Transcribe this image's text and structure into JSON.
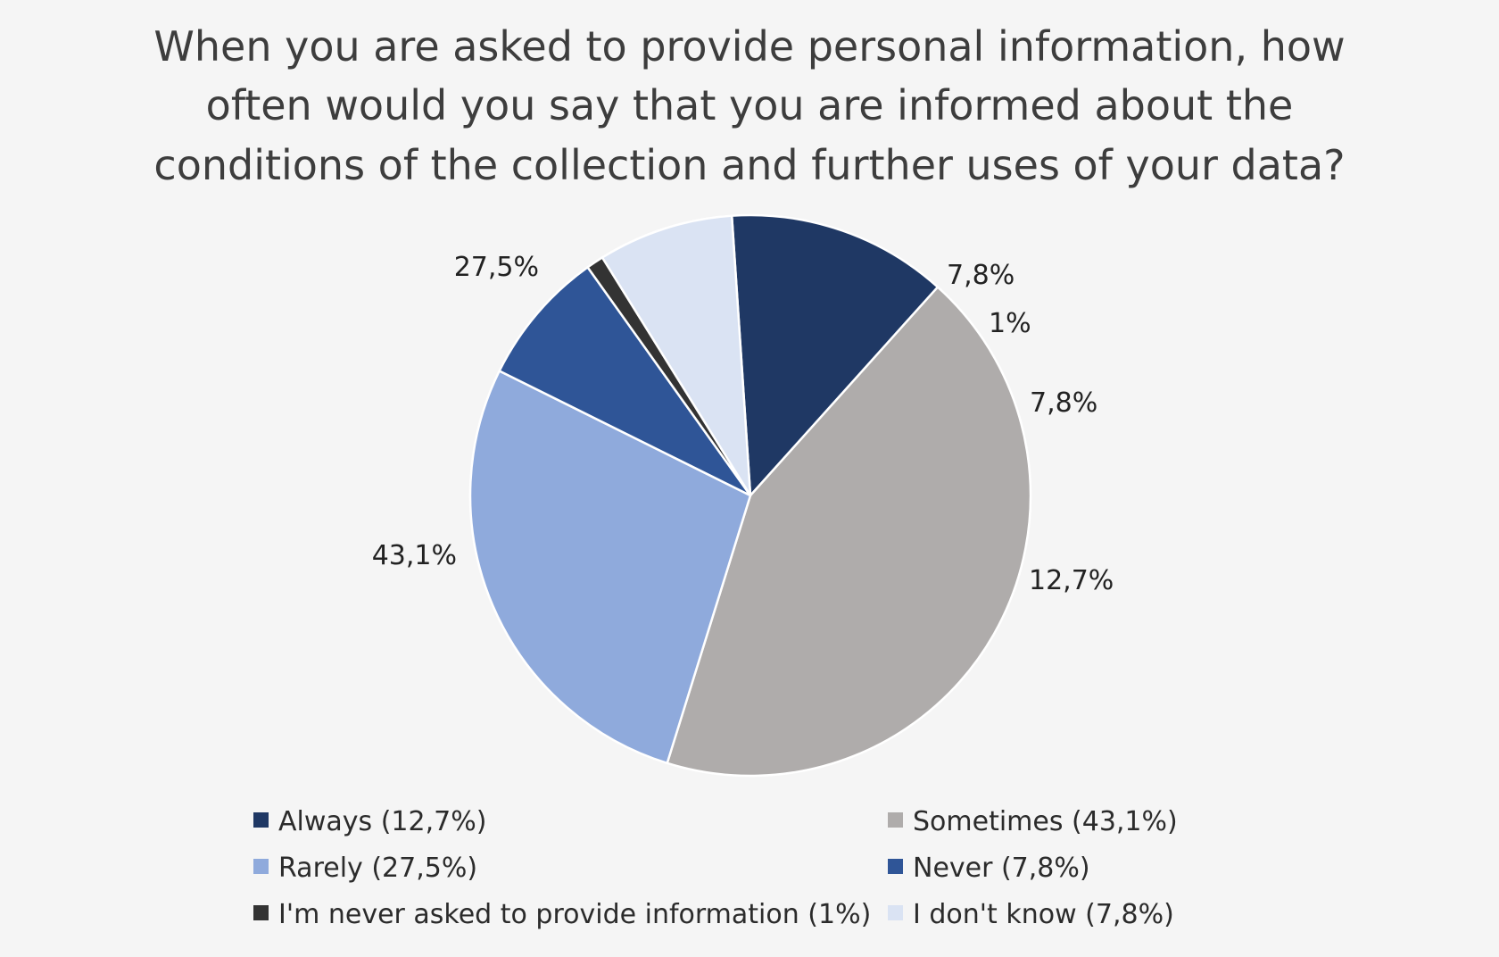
{
  "chart_data": {
    "type": "pie",
    "title": [
      "When you are asked to provide personal information, how",
      "often would you say that you are informed about the",
      "conditions of the collection and further uses of your data?"
    ],
    "start_angle_deg": 93.8,
    "direction": "clockwise",
    "slices": [
      {
        "name": "Always",
        "value": 12.7,
        "label": "12,7%",
        "legend": "Always (12,7%)",
        "color": "#1f3864"
      },
      {
        "name": "Sometimes",
        "value": 43.1,
        "label": "43,1%",
        "legend": "Sometimes (43,1%)",
        "color": "#afacab"
      },
      {
        "name": "Rarely",
        "value": 27.5,
        "label": "27,5%",
        "legend": "Rarely (27,5%)",
        "color": "#8faadc"
      },
      {
        "name": "Never",
        "value": 7.8,
        "label": "7,8%",
        "legend": "Never (7,8%)",
        "color": "#2f5597"
      },
      {
        "name": "I'm never asked to provide information",
        "value": 1,
        "label": "1%",
        "legend": "I'm never asked to provide information (1%)",
        "color": "#333333"
      },
      {
        "name": "I don't know",
        "value": 7.8,
        "label": "7,8%",
        "legend": "I don't know (7,8%)",
        "color": "#dae3f3"
      }
    ],
    "legend_position": "bottom"
  }
}
